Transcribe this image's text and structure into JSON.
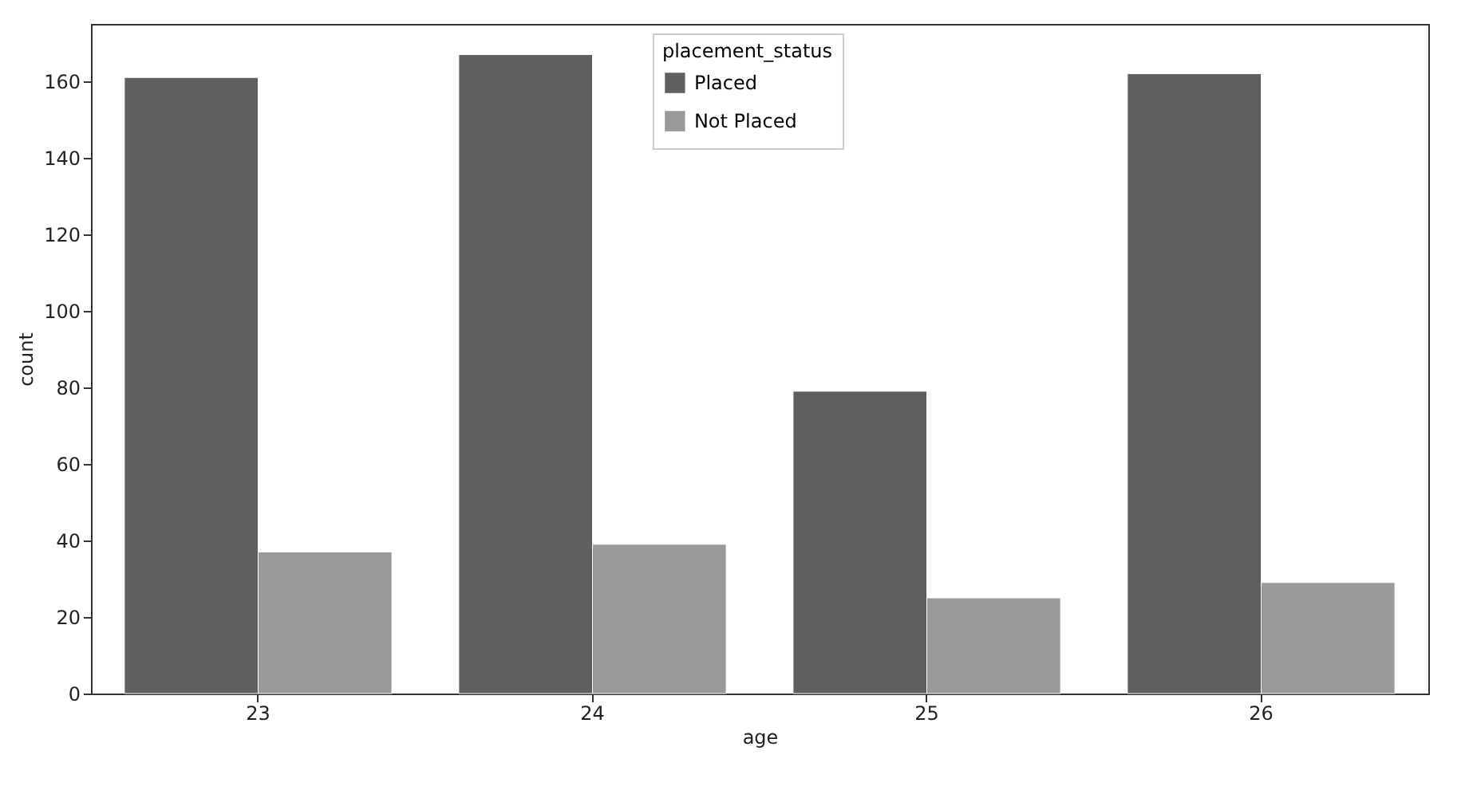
{
  "chart_data": {
    "type": "bar",
    "xlabel": "age",
    "ylabel": "count",
    "legend_title": "placement_status",
    "categories": [
      "23",
      "24",
      "25",
      "26"
    ],
    "series": [
      {
        "name": "Placed",
        "color": "#5f5f5f",
        "values": [
          161,
          167,
          79,
          162
        ]
      },
      {
        "name": "Not Placed",
        "color": "#999999",
        "values": [
          37,
          39,
          25,
          29
        ]
      }
    ],
    "ylim": [
      0,
      175
    ],
    "yticks": [
      0,
      20,
      40,
      60,
      80,
      100,
      120,
      140,
      160
    ],
    "grid": false,
    "legend": "top"
  }
}
